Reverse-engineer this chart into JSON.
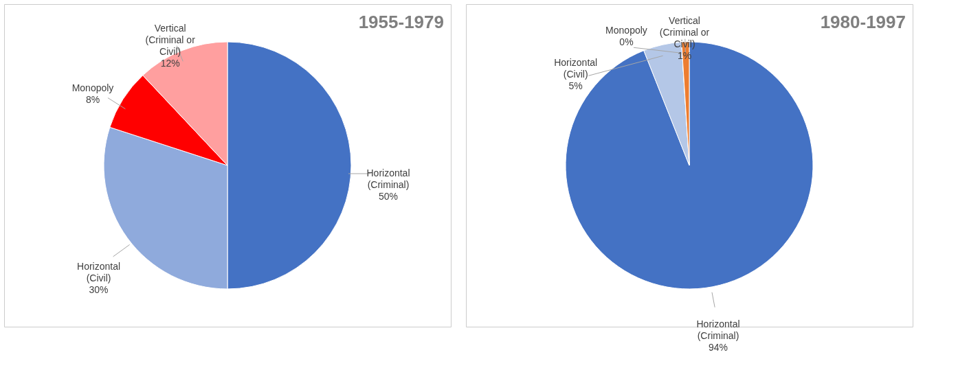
{
  "chart_data": [
    {
      "type": "pie",
      "title": "1955-1979",
      "categories": [
        "Horizontal (Criminal)",
        "Horizontal (Civil)",
        "Monopoly",
        "Vertical (Criminal or Civil)"
      ],
      "values": [
        50,
        30,
        8,
        12
      ],
      "colors": [
        "#4472c4",
        "#8faadc",
        "#ff0000",
        "#ff9f9f"
      ],
      "value_labels": [
        "50%",
        "30%",
        "8%",
        "12%"
      ],
      "legend": false
    },
    {
      "type": "pie",
      "title": "1980-1997",
      "categories": [
        "Horizontal (Criminal)",
        "Horizontal (Civil)",
        "Monopoly",
        "Vertical (Criminal or Civil)"
      ],
      "values": [
        94,
        5,
        0,
        1
      ],
      "colors": [
        "#4472c4",
        "#b4c7e7",
        "#f8cbad",
        "#ed7d31"
      ],
      "value_labels": [
        "94%",
        "5%",
        "0%",
        "1%"
      ],
      "legend": false
    }
  ]
}
